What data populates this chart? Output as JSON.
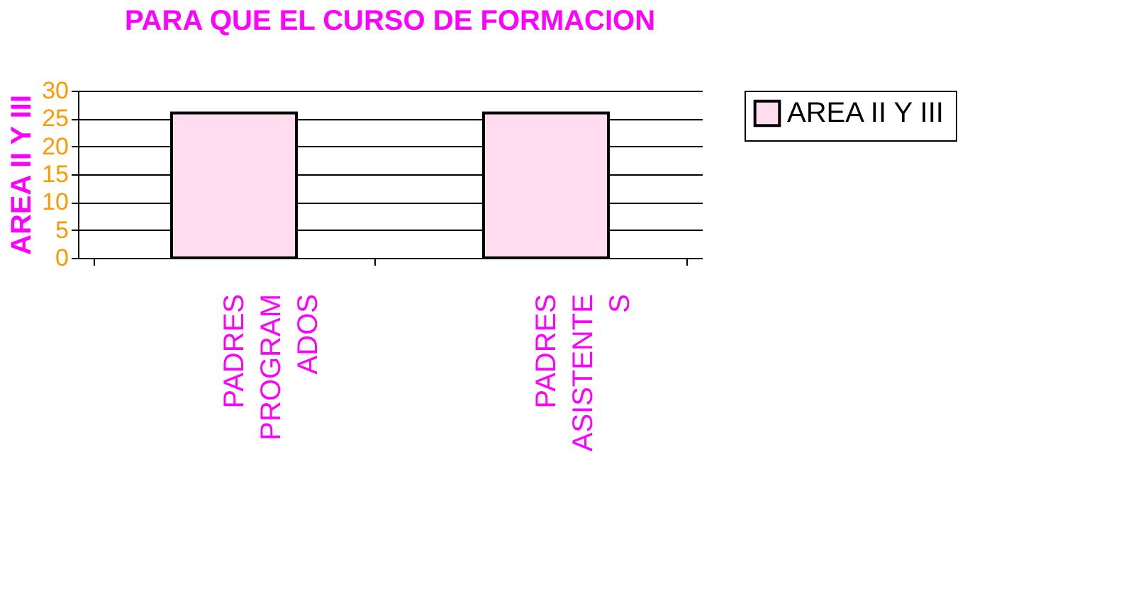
{
  "chart_data": {
    "type": "bar",
    "title": "PARA QUE EL CURSO DE FORMACION",
    "ylabel": "AREA II Y III",
    "categories": [
      "PADRES\nPROGRAM\nADOS",
      "PADRES\nASISTENTE\nS"
    ],
    "series": [
      {
        "name": "AREA II Y III",
        "color": "#ffdcee",
        "values": [
          26,
          26
        ]
      }
    ],
    "ylim": [
      0,
      30
    ],
    "yticks": [
      0,
      5,
      10,
      15,
      20,
      25,
      30
    ],
    "grid": "y",
    "legend": "right"
  }
}
